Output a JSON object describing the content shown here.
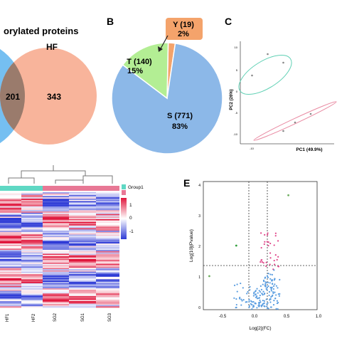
{
  "colors": {
    "venn_left": "#66b8f0",
    "venn_right": "#f59b79",
    "venn_overlap": "#9a7b6c",
    "pie_S": "#8cb8e8",
    "pie_T": "#b3ee94",
    "pie_Y": "#f4a36b",
    "pca_group1": "#5fd0b4",
    "pca_group2": "#e98aa2",
    "heat_high": "#e0173d",
    "heat_low": "#2e3bd6",
    "heat_group_a": "#5fd8c4",
    "heat_group_b": "#e87895",
    "volcano_up": "#e0478a",
    "volcano_down": "#2f9e3a",
    "volcano_ns": "#5a9de0",
    "volcano_extra": "#6fae60"
  },
  "panel_labels": {
    "B": "B",
    "C": "C",
    "E": "E"
  },
  "chart_data": [
    {
      "type": "venn",
      "title": "orylated proteins",
      "sets": [
        {
          "name": "",
          "values_visible": false
        },
        {
          "name": "HF",
          "only_count": "343"
        }
      ],
      "overlap": "201"
    },
    {
      "type": "pie",
      "slices": [
        {
          "name": "S",
          "count": 771,
          "label": "S (771)",
          "percent_label": "83%",
          "percent": 83
        },
        {
          "name": "T",
          "count": 140,
          "label": "T (140)",
          "percent_label": "15%",
          "percent": 15
        },
        {
          "name": "Y",
          "count": 19,
          "label": "Y (19)",
          "percent_label": "2%",
          "percent": 2
        }
      ]
    },
    {
      "type": "scatter",
      "xlabel": "PC1 (49.9%)",
      "ylabel": "PC2 (26%)",
      "x_ticks": [
        "-10",
        "0",
        "10"
      ],
      "y_ticks": [
        "10",
        "5",
        "0",
        "-5",
        "-10"
      ],
      "xlim": [
        -12,
        12
      ],
      "ylim": [
        -12,
        12
      ],
      "groups": [
        {
          "name": "group1",
          "points": [
            [
              -9,
              4
            ],
            [
              -5,
              9
            ],
            [
              -1,
              7
            ]
          ]
        },
        {
          "name": "group2",
          "points": [
            [
              -1,
              -9
            ],
            [
              2,
              -7
            ],
            [
              6,
              -5
            ]
          ]
        }
      ]
    },
    {
      "type": "heatmap",
      "legend_title": "Group1",
      "legend_ticks": [
        "1",
        "0",
        "-1"
      ],
      "column_labels": [
        "HF1",
        "HF2",
        "SG2",
        "SG1",
        "SG3"
      ],
      "groups": [
        "a",
        "a",
        "b",
        "b",
        "b"
      ]
    },
    {
      "type": "scatter",
      "xlabel": "Log[2](FC)",
      "ylabel": "Log[10](Pvalue)",
      "x_ticks": [
        "-0.5",
        "0.0",
        "0.5",
        "1.0"
      ],
      "y_ticks": [
        "0",
        "1",
        "2",
        "3",
        "4"
      ],
      "xlim": [
        -0.8,
        1.1
      ],
      "ylim": [
        0,
        4.2
      ],
      "thresholds": {
        "x": [
          -0.15,
          0.15
        ],
        "y": 1.3
      },
      "notable_points": [
        {
          "x": 0.62,
          "y": 3.75,
          "cls": "extra"
        },
        {
          "x": -0.7,
          "y": 1.1,
          "cls": "extra"
        },
        {
          "x": -0.25,
          "y": 2.1,
          "cls": "down"
        }
      ]
    }
  ]
}
